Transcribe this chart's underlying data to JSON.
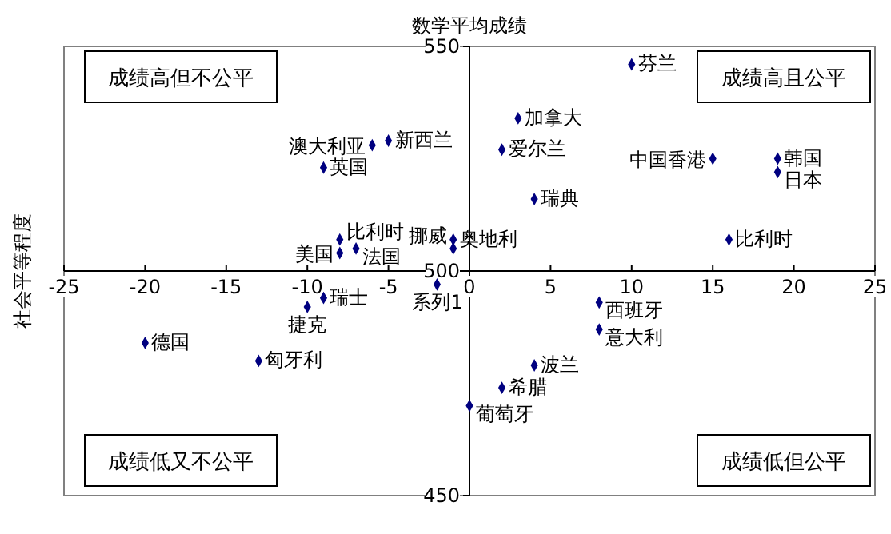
{
  "chart_data": {
    "type": "scatter",
    "ylabel": "社会平等程度",
    "title": "数学平均成绩",
    "xlim": [
      -25,
      25
    ],
    "ylim": [
      450,
      550
    ],
    "xticks": [
      -25,
      -20,
      -15,
      -10,
      -5,
      0,
      5,
      10,
      15,
      20,
      25
    ],
    "yticks": [
      450,
      500,
      550
    ],
    "marker": "diamond",
    "grid": false,
    "series": [
      {
        "color": "#000080",
        "x": [
          -5,
          -6,
          -9,
          -8,
          -8,
          -7,
          -1,
          -1,
          10,
          3,
          2,
          15,
          19,
          19,
          4,
          16,
          -9,
          -10,
          -20,
          -13,
          -2,
          0,
          8,
          8,
          4,
          2
        ],
        "values": [
          529,
          528,
          523,
          507,
          504,
          505,
          507,
          505,
          546,
          534,
          527,
          525,
          525,
          522,
          516,
          507,
          494,
          492,
          484,
          480,
          497,
          470,
          493,
          487,
          479,
          474
        ]
      }
    ],
    "annotations": [
      {
        "text": "新西兰",
        "x": -5,
        "y": 529
      },
      {
        "text": "澳大利亚",
        "x": -6,
        "y": 528
      },
      {
        "text": "英国",
        "x": -9,
        "y": 523
      },
      {
        "text": "比利时",
        "x": -8,
        "y": 507
      },
      {
        "text": "美国",
        "x": -8,
        "y": 504
      },
      {
        "text": "法国",
        "x": -7,
        "y": 505
      },
      {
        "text": "奥地利",
        "x": -1,
        "y": 507
      },
      {
        "text": "挪威",
        "x": -1,
        "y": 505
      },
      {
        "text": "芬兰",
        "x": 10,
        "y": 546
      },
      {
        "text": "加拿大",
        "x": 3,
        "y": 534
      },
      {
        "text": "爱尔兰",
        "x": 2,
        "y": 527
      },
      {
        "text": "中国香港",
        "x": 15,
        "y": 525
      },
      {
        "text": "韩国",
        "x": 19,
        "y": 525
      },
      {
        "text": "日本",
        "x": 19,
        "y": 522
      },
      {
        "text": "瑞典",
        "x": 4,
        "y": 516
      },
      {
        "text": "比利时",
        "x": 16,
        "y": 507
      },
      {
        "text": "瑞士",
        "x": -9,
        "y": 494
      },
      {
        "text": "捷克",
        "x": -10,
        "y": 492
      },
      {
        "text": "德国",
        "x": -20,
        "y": 484
      },
      {
        "text": "匈牙利",
        "x": -13,
        "y": 480
      },
      {
        "text": "系列1",
        "x": -2,
        "y": 497
      },
      {
        "text": "葡萄牙",
        "x": 0,
        "y": 470
      },
      {
        "text": "西班牙",
        "x": 8,
        "y": 493
      },
      {
        "text": "意大利",
        "x": 8,
        "y": 487
      },
      {
        "text": "波兰",
        "x": 4,
        "y": 479
      },
      {
        "text": "希腊",
        "x": 2,
        "y": 474
      },
      "成绩高但不公平",
      "成绩高且公平",
      "成绩低又不公平",
      "成绩低但公平"
    ]
  }
}
